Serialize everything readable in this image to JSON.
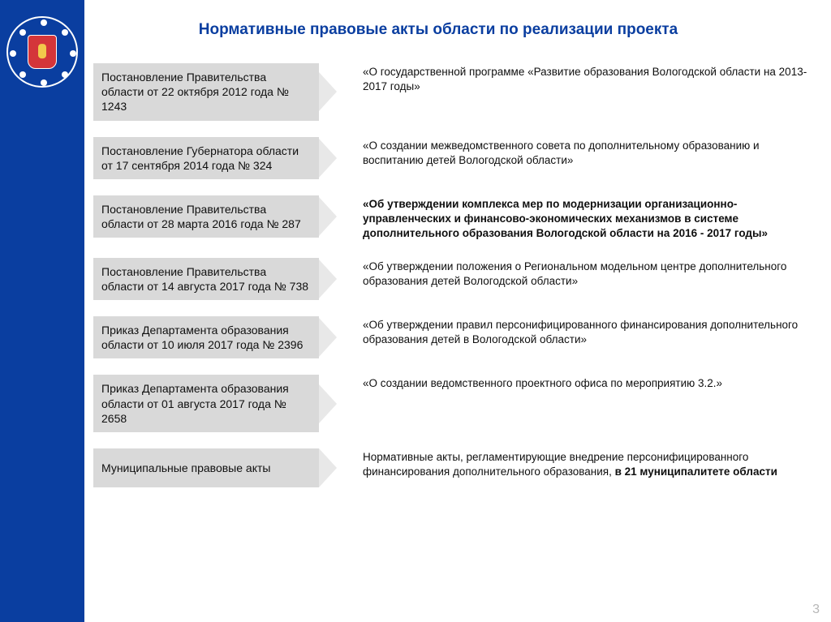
{
  "title": "Нормативные правовые акты области по реализации проекта",
  "page_number": "3",
  "colors": {
    "sidebar_bg": "#0a3ea0",
    "title_color": "#0a3ea0",
    "box_bg": "#d9d9d9",
    "arrow_bg": "#e8e8e8",
    "text": "#0f0f0f",
    "page_num": "#b7b7b7",
    "shield": "#d4353a"
  },
  "rows": [
    {
      "doc": "Постановление Правительства области от 22 октября 2012 года № 1243",
      "desc": "«О государственной программе «Развитие образования Вологодской области на 2013-2017 годы»",
      "bold": false
    },
    {
      "doc": "Постановление Губернатора области от 17 сентября 2014 года № 324",
      "desc": "«О создании межведомственного совета по дополнительному образованию и воспитанию детей Вологодской области»",
      "bold": false
    },
    {
      "doc": "Постановление Правительства области от 28 марта 2016 года № 287",
      "desc": "«Об утверждении комплекса мер по модернизации организационно-управленческих и финансово-экономических механизмов в системе дополнительного образования Вологодской области на 2016 - 2017 годы»",
      "bold": true
    },
    {
      "doc": "Постановление Правительства области от 14 августа 2017 года № 738",
      "desc": "«Об  утверждении положения о Региональном модельном центре  дополнительного образования детей Вологодской области»",
      "bold": false
    },
    {
      "doc": "Приказ Департамента образования области от 10 июля 2017 года  № 2396",
      "desc": "«Об утверждении правил персонифицированного финансирования дополнительного образования детей в Вологодской области»",
      "bold": false
    },
    {
      "doc": "Приказ Департамента образования области от 01 августа 2017 года  № 2658",
      "desc": "«О создании ведомственного проектного офиса по мероприятию 3.2.»",
      "bold": false
    }
  ],
  "final_row": {
    "doc": "Муниципальные правовые акты",
    "desc_prefix": "Нормативные акты, регламентирующие внедрение персонифицированного финансирования дополнительного образования, ",
    "desc_bold": "в 21 муниципалитете области"
  }
}
